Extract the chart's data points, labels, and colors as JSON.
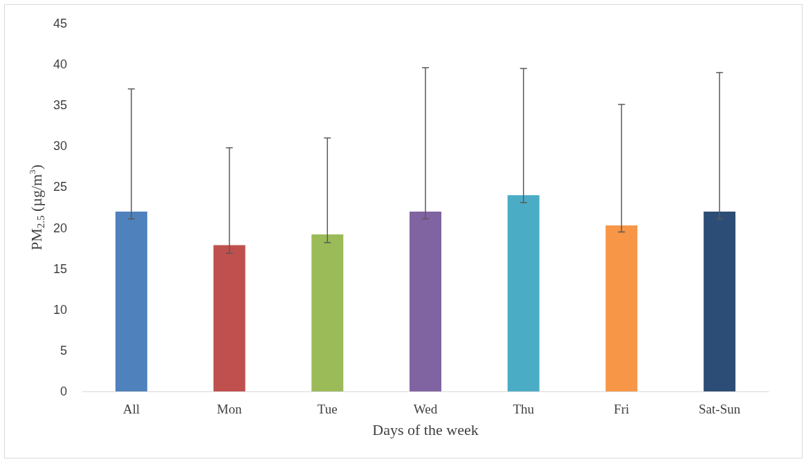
{
  "chart_data": {
    "type": "bar",
    "xlabel": "Days of the week",
    "ylabel": "PM$_{2.5}$ (µg/m$^{3}$)",
    "categories": [
      "All",
      "Mon",
      "Tue",
      "Wed",
      "Thu",
      "Fri",
      "Sat-Sun"
    ],
    "values": [
      22.0,
      17.9,
      19.2,
      22.0,
      24.0,
      20.3,
      22.0
    ],
    "colors": [
      "#4f81bd",
      "#c0504d",
      "#9bbb59",
      "#8064a2",
      "#4bacc6",
      "#f79646",
      "#2c4d75"
    ],
    "errors": [
      [
        21.1,
        37.0
      ],
      [
        16.9,
        29.8
      ],
      [
        18.2,
        31.0
      ],
      [
        21.1,
        39.6
      ],
      [
        23.1,
        39.5
      ],
      [
        19.5,
        35.1
      ],
      [
        21.1,
        39.0
      ]
    ],
    "ylim": [
      0,
      45
    ],
    "yticks": [
      0,
      5,
      10,
      15,
      20,
      25,
      30,
      35,
      40,
      45
    ],
    "grid": false
  }
}
